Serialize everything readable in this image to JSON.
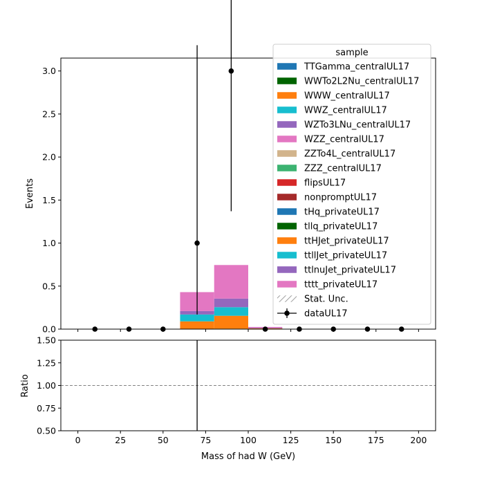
{
  "chart_data": {
    "type": "bar",
    "stacked": true,
    "xlabel": "Mass of had W (GeV)",
    "ylabel": "Events",
    "ratio_ylabel": "Ratio",
    "xlim": [
      -10,
      210
    ],
    "ylim": [
      0,
      3.15
    ],
    "ratio_ylim": [
      0.5,
      1.5
    ],
    "xticks": [
      0,
      25,
      50,
      75,
      100,
      125,
      150,
      175,
      200
    ],
    "yticks": [
      0.0,
      0.5,
      1.0,
      1.5,
      2.0,
      2.5,
      3.0
    ],
    "ratio_yticks": [
      0.5,
      0.75,
      1.0,
      1.25,
      1.5
    ],
    "legend_title": "sample",
    "legend_placement": "top-right",
    "bin_edges": [
      0,
      20,
      40,
      60,
      80,
      100,
      120,
      140,
      160,
      180,
      200
    ],
    "series": [
      {
        "name": "TTGamma_centralUL17",
        "color": "#1f77b4",
        "values": [
          0,
          0,
          0,
          0,
          0,
          0,
          0,
          0,
          0,
          0
        ]
      },
      {
        "name": "WWTo2L2Nu_centralUL17",
        "color": "#006400",
        "values": [
          0,
          0,
          0,
          0,
          0.005,
          0,
          0,
          0,
          0,
          0
        ]
      },
      {
        "name": "WWW_centralUL17",
        "color": "#ff7f0e",
        "values": [
          0,
          0,
          0,
          0,
          0,
          0,
          0,
          0,
          0,
          0
        ]
      },
      {
        "name": "WWZ_centralUL17",
        "color": "#17becf",
        "values": [
          0,
          0,
          0,
          0,
          0,
          0,
          0,
          0,
          0,
          0
        ]
      },
      {
        "name": "WZTo3LNu_centralUL17",
        "color": "#9467bd",
        "values": [
          0,
          0,
          0,
          0,
          0,
          0,
          0,
          0,
          0,
          0
        ]
      },
      {
        "name": "WZZ_centralUL17",
        "color": "#e377c2",
        "values": [
          0,
          0,
          0,
          0,
          0,
          0,
          0,
          0,
          0,
          0
        ]
      },
      {
        "name": "ZZTo4L_centralUL17",
        "color": "#d2b48c",
        "values": [
          0,
          0,
          0,
          0,
          0,
          0,
          0,
          0,
          0,
          0
        ]
      },
      {
        "name": "ZZZ_centralUL17",
        "color": "#3cb371",
        "values": [
          0,
          0,
          0,
          0,
          0,
          0,
          0,
          0,
          0,
          0
        ]
      },
      {
        "name": "flipsUL17",
        "color": "#d62728",
        "values": [
          0,
          0,
          0,
          0,
          0,
          0.005,
          0,
          0,
          0,
          0
        ]
      },
      {
        "name": "nonpromptUL17",
        "color": "#a52a2a",
        "values": [
          0,
          0,
          0,
          0,
          0,
          0,
          0,
          0,
          0,
          0
        ]
      },
      {
        "name": "tHq_privateUL17",
        "color": "#1f77b4",
        "values": [
          0,
          0,
          0,
          0,
          0,
          0,
          0,
          0,
          0,
          0
        ]
      },
      {
        "name": "tllq_privateUL17",
        "color": "#006400",
        "values": [
          0,
          0,
          0,
          0,
          0,
          0,
          0,
          0,
          0,
          0
        ]
      },
      {
        "name": "ttHJet_privateUL17",
        "color": "#ff7f0e",
        "values": [
          0,
          0,
          0,
          0.09,
          0.15,
          0.005,
          0,
          0,
          0,
          0
        ]
      },
      {
        "name": "ttllJet_privateUL17",
        "color": "#17becf",
        "values": [
          0,
          0,
          0,
          0.08,
          0.1,
          0,
          0,
          0,
          0,
          0
        ]
      },
      {
        "name": "ttlnuJet_privateUL17",
        "color": "#9467bd",
        "values": [
          0,
          0,
          0,
          0.04,
          0.1,
          0.005,
          0,
          0,
          0,
          0
        ]
      },
      {
        "name": "tttt_privateUL17",
        "color": "#e377c2",
        "values": [
          0,
          0,
          0,
          0.22,
          0.39,
          0.01,
          0,
          0,
          0,
          0
        ]
      }
    ],
    "stat_unc_label": "Stat. Unc.",
    "data": {
      "name": "dataUL17",
      "color": "#000000",
      "x": [
        10,
        30,
        50,
        70,
        90,
        110,
        130,
        150,
        170,
        190
      ],
      "y": [
        0,
        0,
        0,
        1,
        3,
        0,
        0,
        0,
        0,
        0
      ],
      "yerr_low": [
        0,
        0,
        0,
        0.83,
        1.63,
        0,
        0,
        0,
        0,
        0
      ],
      "yerr_high": [
        0,
        0,
        0,
        2.3,
        2.92,
        0,
        0,
        0,
        0,
        0
      ]
    },
    "ratio": {
      "reference_line": 1.0,
      "error_bars": [
        {
          "x": 70,
          "low": 0.5,
          "high": 1.5
        }
      ]
    }
  }
}
